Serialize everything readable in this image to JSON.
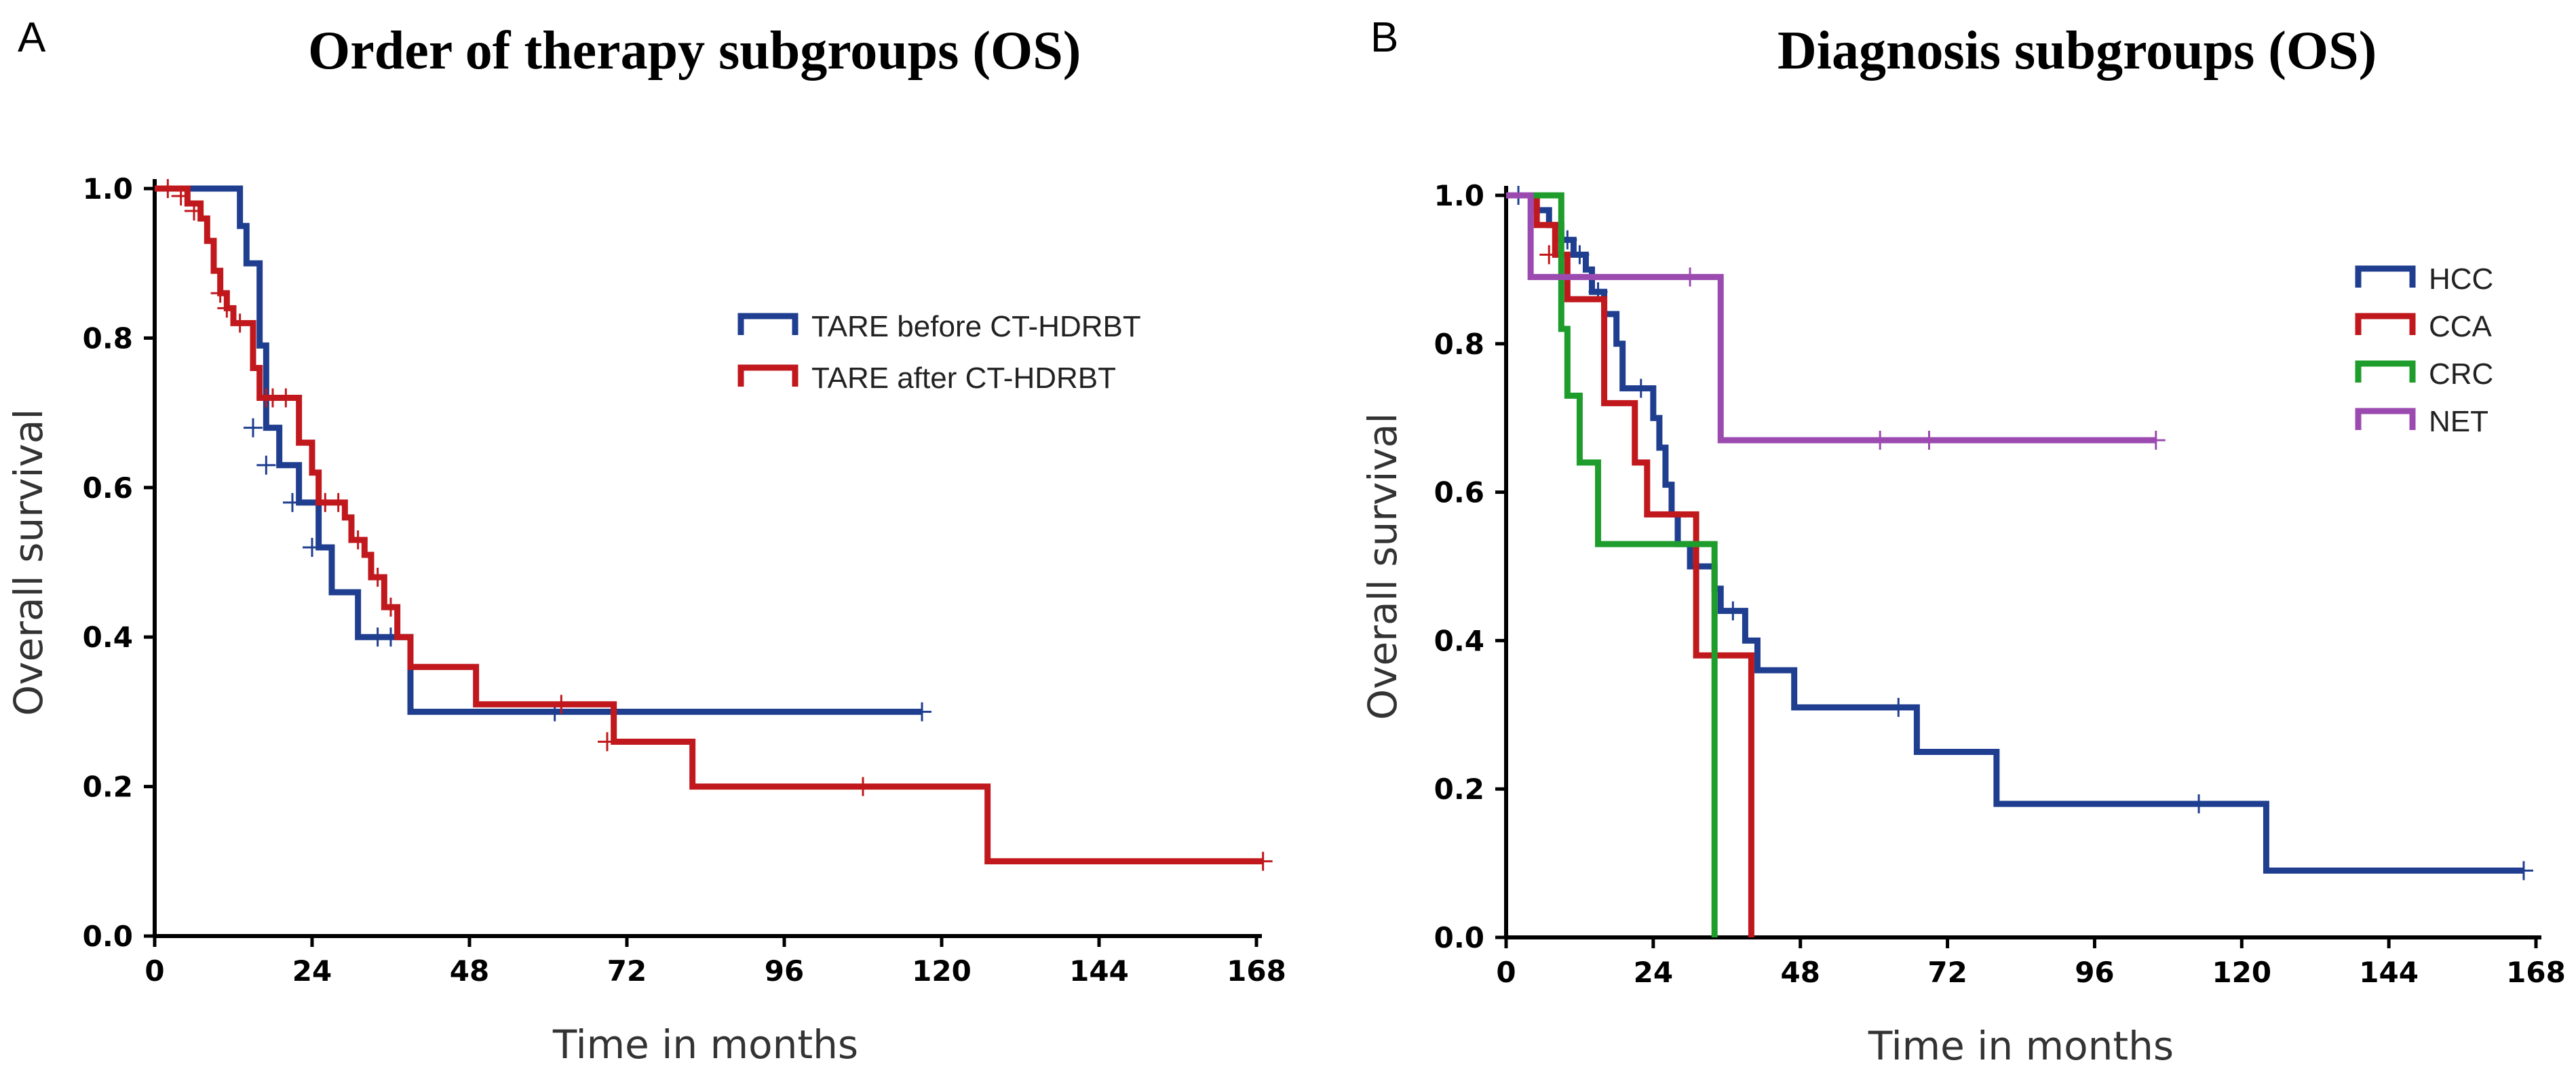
{
  "panels": [
    {
      "letter": "A",
      "title": "Order of therapy subgroups (OS)"
    },
    {
      "letter": "B",
      "title": "Diagnosis subgroups (OS)"
    }
  ],
  "chart_data": [
    {
      "type": "line",
      "subtype": "kaplan-meier",
      "title": "Order of therapy subgroups (OS)",
      "xlabel": "Time in months",
      "ylabel": "Overall survival",
      "xlim": [
        0,
        168
      ],
      "ylim": [
        0,
        1.0
      ],
      "xticks": [
        0,
        24,
        48,
        72,
        96,
        120,
        144,
        168
      ],
      "yticks": [
        0.0,
        0.2,
        0.4,
        0.6,
        0.8,
        1.0
      ],
      "xtick_labels": [
        "0",
        "24",
        "48",
        "72",
        "96",
        "120",
        "144",
        "168"
      ],
      "ytick_labels": [
        "0.0",
        "0.2",
        "0.4",
        "0.6",
        "0.8",
        "1.0"
      ],
      "legend_position": "top-right",
      "series": [
        {
          "name": "TARE before CT-HDRBT",
          "color": "#1f3e8f",
          "steps": [
            [
              0,
              1.0
            ],
            [
              12,
              1.0
            ],
            [
              13,
              0.95
            ],
            [
              14,
              0.9
            ],
            [
              16,
              0.79
            ],
            [
              17,
              0.68
            ],
            [
              19,
              0.63
            ],
            [
              22,
              0.58
            ],
            [
              25,
              0.52
            ],
            [
              27,
              0.46
            ],
            [
              31,
              0.4
            ],
            [
              39,
              0.3
            ],
            [
              117,
              0.3
            ]
          ],
          "censors": [
            [
              15,
              0.68
            ],
            [
              17,
              0.63
            ],
            [
              21,
              0.58
            ],
            [
              24,
              0.52
            ],
            [
              34,
              0.4
            ],
            [
              36,
              0.4
            ],
            [
              61,
              0.3
            ],
            [
              117,
              0.3
            ]
          ]
        },
        {
          "name": "TARE after CT-HDRBT",
          "color": "#c0181c",
          "steps": [
            [
              0,
              1.0
            ],
            [
              5,
              0.98
            ],
            [
              7,
              0.96
            ],
            [
              8,
              0.93
            ],
            [
              9,
              0.89
            ],
            [
              10,
              0.86
            ],
            [
              11,
              0.84
            ],
            [
              12,
              0.82
            ],
            [
              15,
              0.76
            ],
            [
              16,
              0.72
            ],
            [
              22,
              0.66
            ],
            [
              24,
              0.62
            ],
            [
              25,
              0.58
            ],
            [
              29,
              0.56
            ],
            [
              30,
              0.53
            ],
            [
              32,
              0.51
            ],
            [
              33,
              0.48
            ],
            [
              35,
              0.44
            ],
            [
              37,
              0.4
            ],
            [
              39,
              0.36
            ],
            [
              49,
              0.31
            ],
            [
              70,
              0.26
            ],
            [
              82,
              0.2
            ],
            [
              127,
              0.1
            ],
            [
              169,
              0.1
            ]
          ],
          "censors": [
            [
              2,
              1.0
            ],
            [
              4,
              0.99
            ],
            [
              6,
              0.97
            ],
            [
              10,
              0.86
            ],
            [
              11,
              0.84
            ],
            [
              13,
              0.82
            ],
            [
              17,
              0.72
            ],
            [
              18,
              0.72
            ],
            [
              20,
              0.72
            ],
            [
              26,
              0.58
            ],
            [
              28,
              0.58
            ],
            [
              31,
              0.53
            ],
            [
              34,
              0.48
            ],
            [
              36,
              0.44
            ],
            [
              62,
              0.31
            ],
            [
              69,
              0.26
            ],
            [
              108,
              0.2
            ],
            [
              169,
              0.1
            ]
          ]
        }
      ]
    },
    {
      "type": "line",
      "subtype": "kaplan-meier",
      "title": "Diagnosis subgroups (OS)",
      "xlabel": "Time in months",
      "ylabel": "Overall survival",
      "xlim": [
        0,
        168
      ],
      "ylim": [
        0,
        1.0
      ],
      "xticks": [
        0,
        24,
        48,
        72,
        96,
        120,
        144,
        168
      ],
      "yticks": [
        0.0,
        0.2,
        0.4,
        0.6,
        0.8,
        1.0
      ],
      "xtick_labels": [
        "0",
        "24",
        "48",
        "72",
        "96",
        "120",
        "144",
        "168"
      ],
      "ytick_labels": [
        "0.0",
        "0.2",
        "0.4",
        "0.6",
        "0.8",
        "1.0"
      ],
      "legend_position": "top-right",
      "series": [
        {
          "name": "HCC",
          "color": "#1f3e8f",
          "steps": [
            [
              0,
              1.0
            ],
            [
              5,
              0.98
            ],
            [
              7,
              0.96
            ],
            [
              9,
              0.94
            ],
            [
              11,
              0.92
            ],
            [
              13,
              0.9
            ],
            [
              14,
              0.87
            ],
            [
              16,
              0.84
            ],
            [
              18,
              0.8
            ],
            [
              19,
              0.74
            ],
            [
              24,
              0.7
            ],
            [
              25,
              0.66
            ],
            [
              26,
              0.61
            ],
            [
              27,
              0.57
            ],
            [
              28,
              0.53
            ],
            [
              30,
              0.5
            ],
            [
              34,
              0.47
            ],
            [
              35,
              0.44
            ],
            [
              39,
              0.4
            ],
            [
              41,
              0.36
            ],
            [
              47,
              0.31
            ],
            [
              67,
              0.25
            ],
            [
              80,
              0.18
            ],
            [
              124,
              0.09
            ],
            [
              166,
              0.09
            ]
          ],
          "censors": [
            [
              2,
              1.0
            ],
            [
              10,
              0.94
            ],
            [
              12,
              0.92
            ],
            [
              15,
              0.87
            ],
            [
              22,
              0.74
            ],
            [
              37,
              0.44
            ],
            [
              64,
              0.31
            ],
            [
              113,
              0.18
            ],
            [
              166,
              0.09
            ]
          ]
        },
        {
          "name": "CCA",
          "color": "#c0181c",
          "steps": [
            [
              0,
              1.0
            ],
            [
              5,
              0.96
            ],
            [
              8,
              0.92
            ],
            [
              10,
              0.86
            ],
            [
              16,
              0.72
            ],
            [
              21,
              0.64
            ],
            [
              23,
              0.57
            ],
            [
              31,
              0.38
            ],
            [
              40,
              0.0
            ]
          ],
          "censors": [
            [
              7,
              0.92
            ]
          ]
        },
        {
          "name": "CRC",
          "color": "#1e9c2c",
          "steps": [
            [
              0,
              1.0
            ],
            [
              8,
              1.0
            ],
            [
              9,
              0.82
            ],
            [
              10,
              0.73
            ],
            [
              12,
              0.64
            ],
            [
              15,
              0.53
            ],
            [
              34,
              0.0
            ]
          ],
          "censors": []
        },
        {
          "name": "NET",
          "color": "#9b4bb0",
          "steps": [
            [
              0,
              1.0
            ],
            [
              4,
              0.89
            ],
            [
              34,
              0.89
            ],
            [
              35,
              0.67
            ],
            [
              106,
              0.67
            ]
          ],
          "censors": [
            [
              30,
              0.89
            ],
            [
              61,
              0.67
            ],
            [
              69,
              0.67
            ],
            [
              106,
              0.67
            ]
          ]
        }
      ]
    }
  ]
}
